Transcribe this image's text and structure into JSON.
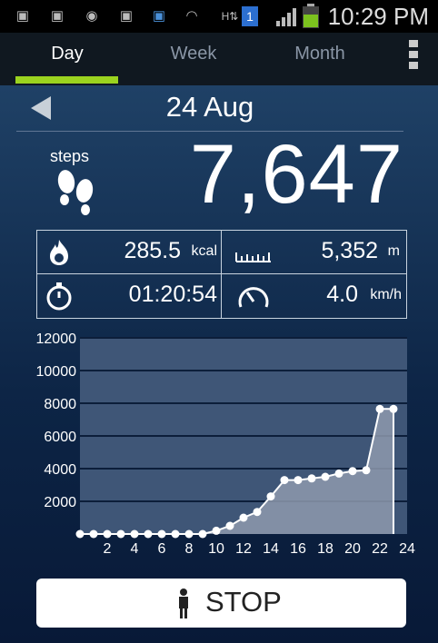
{
  "status_bar": {
    "time": "10:29 PM",
    "icons": [
      "photo-icon",
      "photo-icon",
      "tripadvisor-icon",
      "photo-icon",
      "pedometer-icon",
      "wifi-icon",
      "data-transfer-icon",
      "notification-badge-icon",
      "signal-icon",
      "battery-icon"
    ],
    "notification_count": "1"
  },
  "tabs": [
    {
      "label": "Day",
      "active": true
    },
    {
      "label": "Week",
      "active": false
    },
    {
      "label": "Month",
      "active": false
    }
  ],
  "accent_color": "#9bd31f",
  "date": "24 Aug",
  "steps": {
    "label": "steps",
    "value": "7,647"
  },
  "stats": {
    "calories": {
      "value": "285.5",
      "unit": "kcal",
      "icon": "flame-icon"
    },
    "distance": {
      "value": "5,352",
      "unit": "m",
      "icon": "ruler-icon"
    },
    "duration": {
      "value": "01:20:54",
      "icon": "stopwatch-icon"
    },
    "speed": {
      "value": "4.0",
      "unit": "km/h",
      "icon": "speedometer-icon"
    }
  },
  "chart_data": {
    "type": "area",
    "title": "",
    "xlabel": "",
    "ylabel": "",
    "y_ticks": [
      "12000",
      "10000",
      "8000",
      "6000",
      "4000",
      "2000"
    ],
    "x_ticks": [
      "2",
      "4",
      "6",
      "8",
      "10",
      "12",
      "14",
      "16",
      "18",
      "20",
      "22",
      "24"
    ],
    "ylim": [
      0,
      12000
    ],
    "xlim": [
      0,
      24
    ],
    "grid": true,
    "x": [
      0,
      1,
      2,
      3,
      4,
      5,
      6,
      7,
      8,
      9,
      10,
      11,
      12,
      13,
      14,
      15,
      16,
      17,
      18,
      19,
      20,
      21,
      22,
      23
    ],
    "values": [
      0,
      0,
      0,
      0,
      0,
      0,
      0,
      0,
      0,
      0,
      200,
      500,
      1000,
      1350,
      2300,
      3300,
      3300,
      3400,
      3500,
      3700,
      3850,
      3900,
      7650,
      7650
    ]
  },
  "stop_button": {
    "label": "STOP",
    "icon": "person-icon"
  }
}
